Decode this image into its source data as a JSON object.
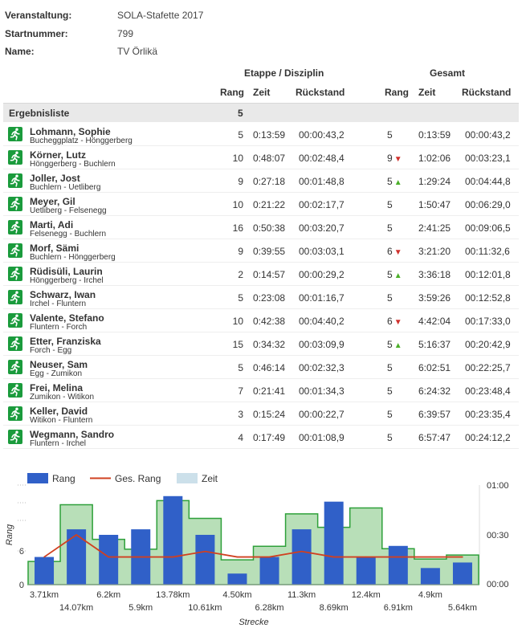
{
  "info": [
    {
      "label": "Veranstaltung:",
      "value": "SOLA-Stafette 2017"
    },
    {
      "label": "Startnummer:",
      "value": "799"
    },
    {
      "label": "Name:",
      "value": "TV Örlikä"
    }
  ],
  "table": {
    "group_etappe": "Etappe / Disziplin",
    "group_gesamt": "Gesamt",
    "col_rang": "Rang",
    "col_zeit": "Zeit",
    "col_rueckstand": "Rückstand",
    "section_label": "Ergebnisliste",
    "section_value": "5",
    "rows": [
      {
        "name": "Lohmann, Sophie",
        "segment": "Bucheggplatz - Hönggerberg",
        "rang": "5",
        "zeit": "0:13:59",
        "rueckstand": "00:00:43,2",
        "g_rang": "5",
        "trend": "",
        "g_zeit": "0:13:59",
        "g_rueckstand": "00:00:43,2"
      },
      {
        "name": "Körner, Lutz",
        "segment": "Hönggerberg - Buchlern",
        "rang": "10",
        "zeit": "0:48:07",
        "rueckstand": "00:02:48,4",
        "g_rang": "9",
        "trend": "down",
        "g_zeit": "1:02:06",
        "g_rueckstand": "00:03:23,1"
      },
      {
        "name": "Joller, Jost",
        "segment": "Buchlern - Uetliberg",
        "rang": "9",
        "zeit": "0:27:18",
        "rueckstand": "00:01:48,8",
        "g_rang": "5",
        "trend": "up",
        "g_zeit": "1:29:24",
        "g_rueckstand": "00:04:44,8"
      },
      {
        "name": "Meyer, Gil",
        "segment": "Uetliberg - Felsenegg",
        "rang": "10",
        "zeit": "0:21:22",
        "rueckstand": "00:02:17,7",
        "g_rang": "5",
        "trend": "",
        "g_zeit": "1:50:47",
        "g_rueckstand": "00:06:29,0"
      },
      {
        "name": "Marti, Adi",
        "segment": "Felsenegg - Buchlern",
        "rang": "16",
        "zeit": "0:50:38",
        "rueckstand": "00:03:20,7",
        "g_rang": "5",
        "trend": "",
        "g_zeit": "2:41:25",
        "g_rueckstand": "00:09:06,5"
      },
      {
        "name": "Morf, Sämi",
        "segment": "Buchlern - Hönggerberg",
        "rang": "9",
        "zeit": "0:39:55",
        "rueckstand": "00:03:03,1",
        "g_rang": "6",
        "trend": "down",
        "g_zeit": "3:21:20",
        "g_rueckstand": "00:11:32,6"
      },
      {
        "name": "Rüdisüli, Laurin",
        "segment": "Hönggerberg - Irchel",
        "rang": "2",
        "zeit": "0:14:57",
        "rueckstand": "00:00:29,2",
        "g_rang": "5",
        "trend": "up",
        "g_zeit": "3:36:18",
        "g_rueckstand": "00:12:01,8"
      },
      {
        "name": "Schwarz, Iwan",
        "segment": "Irchel - Fluntern",
        "rang": "5",
        "zeit": "0:23:08",
        "rueckstand": "00:01:16,7",
        "g_rang": "5",
        "trend": "",
        "g_zeit": "3:59:26",
        "g_rueckstand": "00:12:52,8"
      },
      {
        "name": "Valente, Stefano",
        "segment": "Fluntern - Forch",
        "rang": "10",
        "zeit": "0:42:38",
        "rueckstand": "00:04:40,2",
        "g_rang": "6",
        "trend": "down",
        "g_zeit": "4:42:04",
        "g_rueckstand": "00:17:33,0"
      },
      {
        "name": "Etter, Franziska",
        "segment": "Forch - Egg",
        "rang": "15",
        "zeit": "0:34:32",
        "rueckstand": "00:03:09,9",
        "g_rang": "5",
        "trend": "up",
        "g_zeit": "5:16:37",
        "g_rueckstand": "00:20:42,9"
      },
      {
        "name": "Neuser, Sam",
        "segment": "Egg - Zumikon",
        "rang": "5",
        "zeit": "0:46:14",
        "rueckstand": "00:02:32,3",
        "g_rang": "5",
        "trend": "",
        "g_zeit": "6:02:51",
        "g_rueckstand": "00:22:25,7"
      },
      {
        "name": "Frei, Melina",
        "segment": "Zumikon - Witikon",
        "rang": "7",
        "zeit": "0:21:41",
        "rueckstand": "00:01:34,3",
        "g_rang": "5",
        "trend": "",
        "g_zeit": "6:24:32",
        "g_rueckstand": "00:23:48,4"
      },
      {
        "name": "Keller, David",
        "segment": "Witikon - Fluntern",
        "rang": "3",
        "zeit": "0:15:24",
        "rueckstand": "00:00:22,7",
        "g_rang": "5",
        "trend": "",
        "g_zeit": "6:39:57",
        "g_rueckstand": "00:23:35,4"
      },
      {
        "name": "Wegmann, Sandro",
        "segment": "Fluntern - Irchel",
        "rang": "4",
        "zeit": "0:17:49",
        "rueckstand": "00:01:08,9",
        "g_rang": "5",
        "trend": "",
        "g_zeit": "6:57:47",
        "g_rueckstand": "00:24:12,2"
      }
    ]
  },
  "colors": {
    "runner_icon_bg": "#1a9b3c",
    "arrow_up": "#4caf2a",
    "arrow_down": "#d0312d",
    "bar_rang": "#3060c8",
    "line_ges_rang": "#d04020",
    "area_zeit_fill": "#b8dfb8",
    "area_zeit_stroke": "#2ea03a",
    "legend_zeit_swatch": "#cce0ea"
  },
  "chart_data": {
    "type": "bar",
    "legend": [
      "Rang",
      "Ges. Rang",
      "Zeit"
    ],
    "legend_position": "top-left",
    "xlabel": "Strecke",
    "ylabel": "Rang",
    "categories": [
      "3.71km",
      "14.07km",
      "6.2km",
      "5.9km",
      "13.78km",
      "10.61km",
      "4.50km",
      "6.28km",
      "11.3km",
      "8.69km",
      "12.4km",
      "6.91km",
      "4.9km",
      "5.64km"
    ],
    "y_left_ticks": [
      "0",
      "6"
    ],
    "y_right_ticks": [
      "00:00",
      "00:30",
      "01:00"
    ],
    "y_right_range_minutes": [
      0,
      60
    ],
    "y_left_range": [
      0,
      18
    ],
    "series": [
      {
        "name": "Rang",
        "type": "bar",
        "values": [
          5,
          10,
          9,
          10,
          16,
          9,
          2,
          5,
          10,
          15,
          5,
          7,
          3,
          4
        ]
      },
      {
        "name": "Ges. Rang",
        "type": "line",
        "values": [
          5,
          9,
          5,
          5,
          5,
          6,
          5,
          5,
          6,
          5,
          5,
          5,
          5,
          5
        ]
      },
      {
        "name": "Zeit",
        "type": "area",
        "values_minutes": [
          13.98,
          48.12,
          27.3,
          21.37,
          50.63,
          39.92,
          14.95,
          23.13,
          42.63,
          34.53,
          46.23,
          21.68,
          15.4,
          17.82
        ]
      }
    ],
    "grid": false
  }
}
